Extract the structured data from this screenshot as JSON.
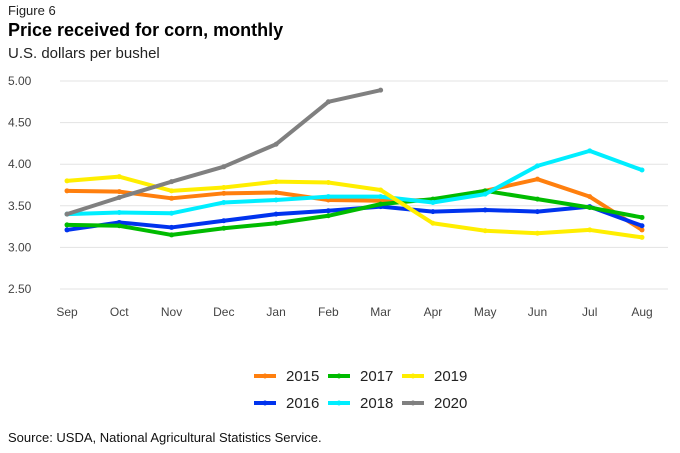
{
  "figure_label": "Figure 6",
  "title": "Price received for corn, monthly",
  "subtitle": "U.S. dollars per bushel",
  "source": "Source: USDA, National Agricultural Statistics Service.",
  "chart_data": {
    "type": "line",
    "title": "Price received for corn, monthly",
    "xlabel": "",
    "ylabel": "U.S. dollars per bushel",
    "x": [
      "Sep",
      "Oct",
      "Nov",
      "Dec",
      "Jan",
      "Feb",
      "Mar",
      "Apr",
      "May",
      "Jun",
      "Jul",
      "Aug"
    ],
    "ylim": [
      2.5,
      5.0
    ],
    "yticks": [
      "2.50",
      "3.00",
      "3.50",
      "4.00",
      "4.50",
      "5.00"
    ],
    "ytick_values": [
      2.5,
      3.0,
      3.5,
      4.0,
      4.5,
      5.0
    ],
    "grid": true,
    "legend_position": "bottom",
    "series": [
      {
        "name": "2015",
        "color": "#ff7f0e",
        "values": [
          3.68,
          3.67,
          3.59,
          3.65,
          3.66,
          3.57,
          3.56,
          3.57,
          3.68,
          3.82,
          3.61,
          3.21
        ]
      },
      {
        "name": "2016",
        "color": "#0033ee",
        "values": [
          3.21,
          3.3,
          3.24,
          3.32,
          3.4,
          3.44,
          3.49,
          3.43,
          3.45,
          3.43,
          3.49,
          3.26
        ]
      },
      {
        "name": "2017",
        "color": "#00bb00",
        "values": [
          3.27,
          3.26,
          3.15,
          3.23,
          3.29,
          3.38,
          3.52,
          3.58,
          3.68,
          3.58,
          3.48,
          3.36
        ]
      },
      {
        "name": "2018",
        "color": "#00eeff",
        "values": [
          3.4,
          3.42,
          3.41,
          3.54,
          3.57,
          3.61,
          3.61,
          3.54,
          3.64,
          3.98,
          4.16,
          3.93
        ]
      },
      {
        "name": "2019",
        "color": "#ffee00",
        "values": [
          3.8,
          3.85,
          3.68,
          3.72,
          3.79,
          3.78,
          3.69,
          3.29,
          3.2,
          3.17,
          3.21,
          3.12
        ]
      },
      {
        "name": "2020",
        "color": "#808080",
        "values": [
          3.4,
          3.6,
          3.79,
          3.97,
          4.24,
          4.75,
          4.89,
          null,
          null,
          null,
          null,
          null
        ]
      }
    ],
    "legend_order": [
      "2015",
      "2017",
      "2019",
      "2016",
      "2018",
      "2020"
    ]
  }
}
